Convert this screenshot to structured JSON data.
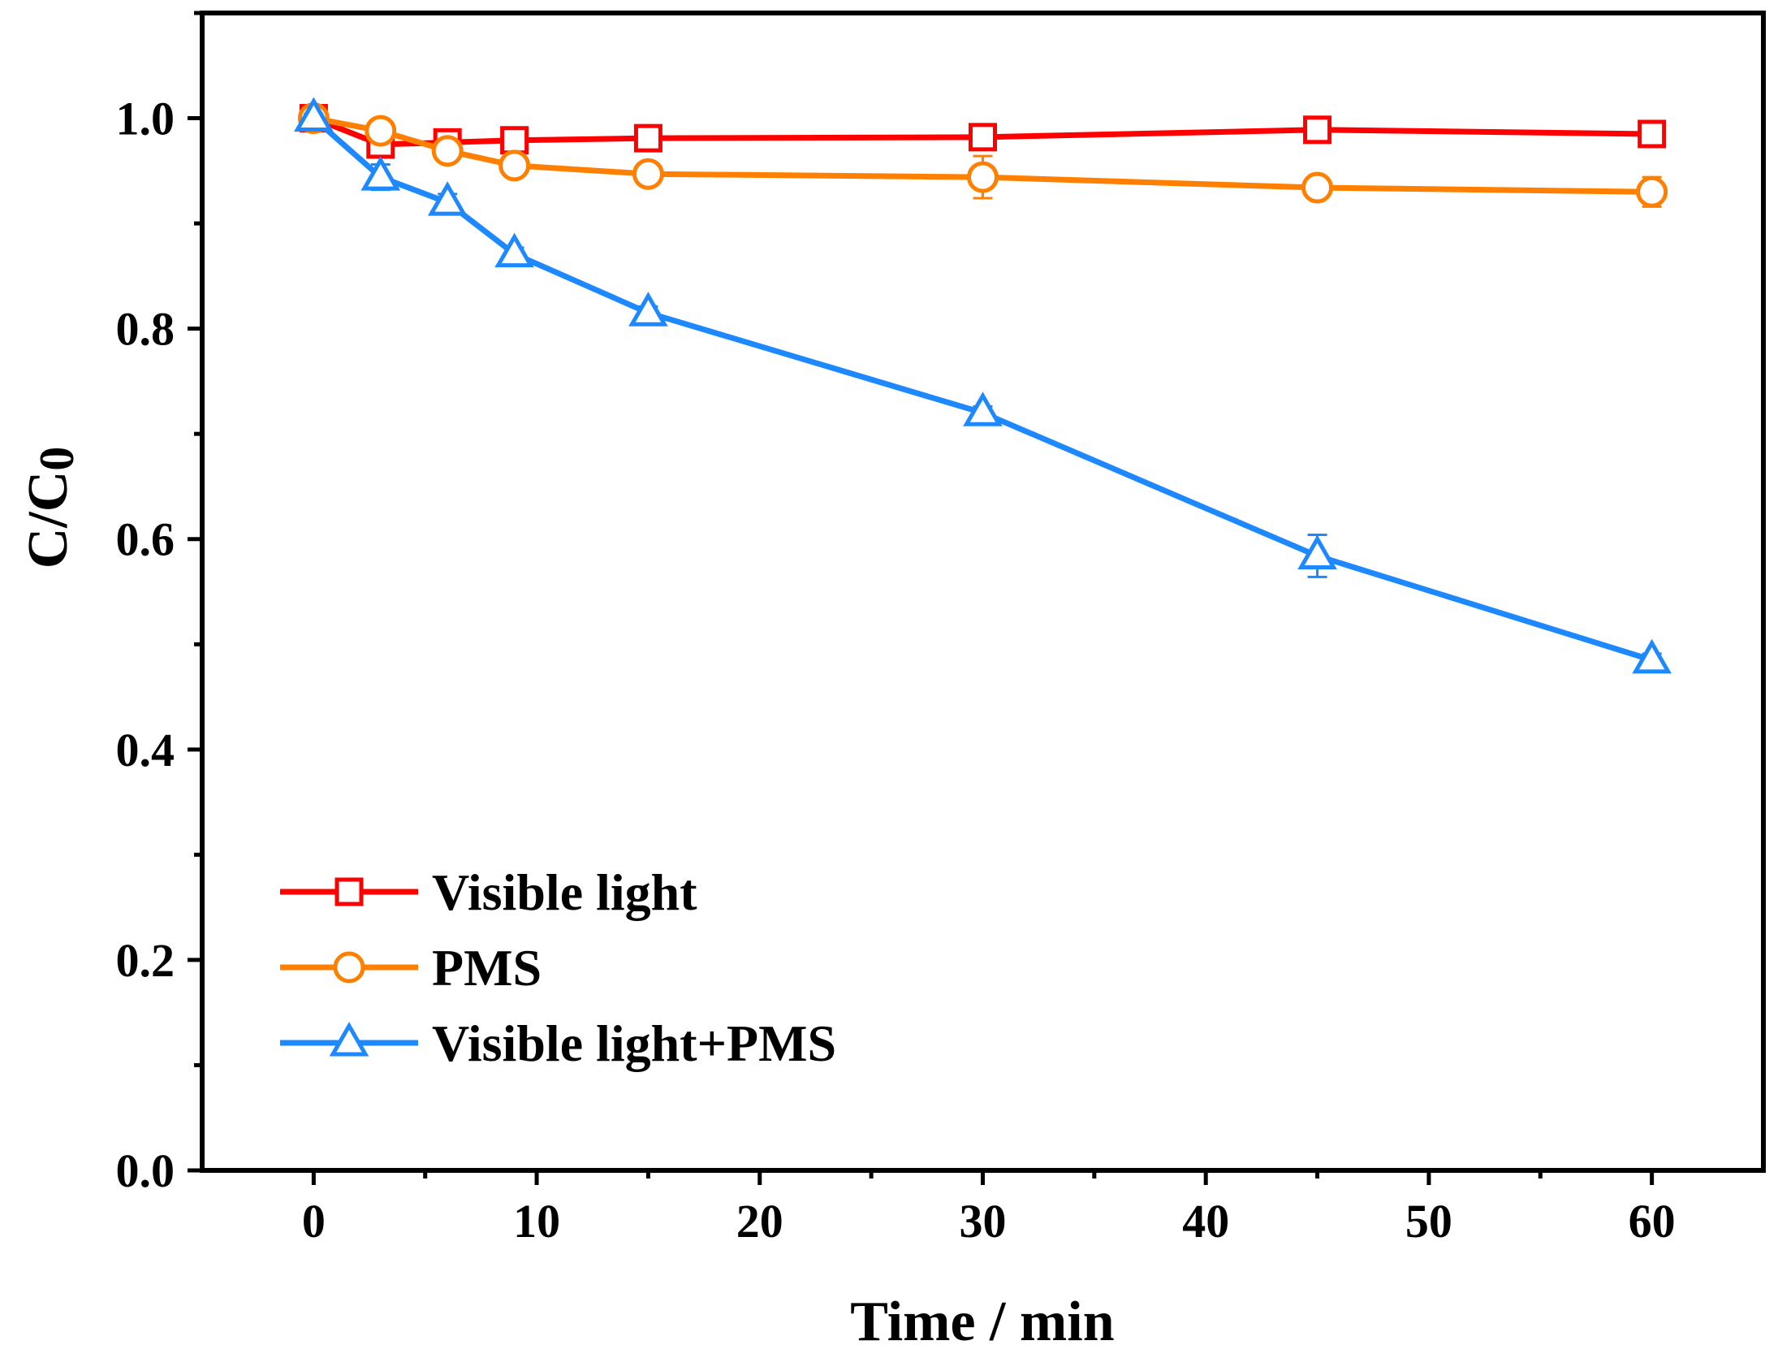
{
  "chart_data": {
    "type": "line",
    "title": "",
    "xlabel": "Time / min",
    "ylabel": "C/C0",
    "ylabel_main": "C/C",
    "ylabel_sub": "0",
    "xlim": [
      -5,
      65
    ],
    "ylim": [
      0,
      1.1
    ],
    "xticks": [
      0,
      10,
      20,
      30,
      40,
      50,
      60
    ],
    "xtick_labels": [
      "0",
      "10",
      "20",
      "30",
      "40",
      "50",
      "60"
    ],
    "yticks": [
      0.0,
      0.2,
      0.4,
      0.6,
      0.8,
      1.0
    ],
    "ytick_labels": [
      "0.0",
      "0.2",
      "0.4",
      "0.6",
      "0.8",
      "1.0"
    ],
    "grid": false,
    "legend_position": "bottom-left",
    "x": [
      0,
      3,
      6,
      9,
      15,
      30,
      45,
      60
    ],
    "series": [
      {
        "name": "Visible light",
        "color": "#ff0000",
        "marker": "square",
        "values": [
          1.0,
          0.975,
          0.977,
          0.979,
          0.981,
          0.982,
          0.989,
          0.985
        ],
        "errors": [
          0.004,
          0.006,
          0.005,
          0.005,
          0.004,
          0.004,
          0.005,
          0.004
        ]
      },
      {
        "name": "PMS",
        "color": "#ff8000",
        "marker": "circle",
        "values": [
          1.0,
          0.988,
          0.969,
          0.955,
          0.947,
          0.944,
          0.934,
          0.93
        ],
        "errors": [
          0.004,
          0.008,
          0.01,
          0.006,
          0.006,
          0.02,
          0.007,
          0.014
        ]
      },
      {
        "name": "Visible light+PMS",
        "color": "#1e88ff",
        "marker": "triangle",
        "values": [
          1.0,
          0.944,
          0.92,
          0.871,
          0.815,
          0.72,
          0.584,
          0.485
        ],
        "errors": [
          0.004,
          0.012,
          0.008,
          0.006,
          0.006,
          0.006,
          0.02,
          0.006
        ]
      }
    ]
  }
}
